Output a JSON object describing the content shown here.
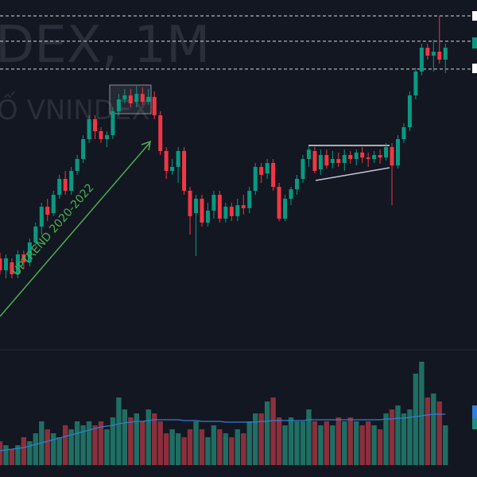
{
  "chart_data": {
    "type": "candlestick",
    "watermark": "DEX, 1M",
    "watermark_sub": "Ố VNINDEX",
    "annotation": "UPTREND 2020-2022",
    "ylim": [
      492,
      1900
    ],
    "vlim": [
      0,
      145
    ],
    "up_color": "#089981",
    "down_color": "#f23645",
    "volume_up_color": "#1f6e63",
    "volume_down_color": "#8c2f3c",
    "ma_color": "#2f7fd8",
    "hlines": [
      1836,
      1734,
      1622
    ],
    "open": [
      860,
      812,
      844,
      796,
      876,
      844,
      924,
      988,
      1068,
      1042,
      1116,
      1180,
      1132,
      1212,
      1260,
      1340,
      1420,
      1372,
      1340,
      1356,
      1452,
      1500,
      1516,
      1490,
      1522,
      1490,
      1510,
      1436,
      1292,
      1212,
      1228,
      1292,
      1132,
      1042,
      1100,
      1004,
      1052,
      1116,
      1020,
      1068,
      1030,
      1074,
      1062,
      1132,
      1228,
      1202,
      1244,
      1148,
      1020,
      1100,
      1138,
      1180,
      1260,
      1292,
      1218,
      1276,
      1244,
      1260,
      1244,
      1276,
      1260,
      1286,
      1266,
      1260,
      1276,
      1266,
      1308,
      1234,
      1340,
      1388,
      1516,
      1612,
      1708,
      1676,
      1692,
      1660
    ],
    "high": [
      882,
      876,
      860,
      892,
      892,
      940,
      1004,
      1084,
      1100,
      1132,
      1196,
      1212,
      1228,
      1276,
      1356,
      1436,
      1436,
      1388,
      1372,
      1468,
      1522,
      1542,
      1542,
      1554,
      1548,
      1542,
      1532,
      1452,
      1308,
      1260,
      1308,
      1308,
      1148,
      1116,
      1116,
      1084,
      1132,
      1132,
      1084,
      1084,
      1100,
      1116,
      1148,
      1244,
      1244,
      1260,
      1260,
      1164,
      1116,
      1148,
      1196,
      1276,
      1314,
      1308,
      1298,
      1298,
      1292,
      1286,
      1298,
      1292,
      1298,
      1308,
      1286,
      1292,
      1298,
      1324,
      1324,
      1356,
      1404,
      1532,
      1628,
      1724,
      1724,
      1740,
      1836,
      1724
    ],
    "low": [
      796,
      780,
      780,
      780,
      818,
      828,
      908,
      956,
      1010,
      1030,
      1100,
      1116,
      1116,
      1196,
      1244,
      1324,
      1340,
      1324,
      1308,
      1340,
      1436,
      1484,
      1468,
      1468,
      1478,
      1478,
      1420,
      1276,
      1180,
      1196,
      1164,
      1116,
      956,
      870,
      988,
      988,
      1020,
      1004,
      1004,
      1010,
      1010,
      1036,
      1042,
      1116,
      1164,
      1180,
      1132,
      1010,
      1010,
      1074,
      1116,
      1164,
      1228,
      1202,
      1196,
      1222,
      1222,
      1228,
      1212,
      1241,
      1234,
      1244,
      1228,
      1244,
      1241,
      1254,
      1074,
      1222,
      1324,
      1372,
      1500,
      1596,
      1660,
      1612,
      1644,
      1606
    ],
    "close": [
      812,
      860,
      796,
      876,
      844,
      924,
      988,
      1068,
      1036,
      1116,
      1180,
      1132,
      1212,
      1260,
      1340,
      1420,
      1372,
      1340,
      1356,
      1452,
      1500,
      1516,
      1484,
      1522,
      1490,
      1510,
      1436,
      1292,
      1212,
      1228,
      1292,
      1132,
      1030,
      1100,
      1004,
      1052,
      1116,
      1020,
      1068,
      1030,
      1074,
      1062,
      1132,
      1228,
      1196,
      1244,
      1148,
      1020,
      1100,
      1138,
      1180,
      1260,
      1298,
      1212,
      1276,
      1234,
      1260,
      1244,
      1276,
      1260,
      1286,
      1266,
      1260,
      1276,
      1266,
      1308,
      1234,
      1340,
      1388,
      1516,
      1612,
      1708,
      1676,
      1692,
      1660,
      1708
    ],
    "volume": [
      30,
      25,
      20,
      25,
      35,
      30,
      40,
      55,
      45,
      40,
      35,
      50,
      45,
      55,
      50,
      55,
      50,
      55,
      45,
      60,
      85,
      70,
      60,
      65,
      55,
      70,
      65,
      55,
      40,
      45,
      40,
      35,
      45,
      55,
      45,
      35,
      50,
      45,
      40,
      35,
      45,
      40,
      55,
      65,
      65,
      80,
      85,
      60,
      50,
      60,
      55,
      55,
      70,
      55,
      50,
      55,
      50,
      60,
      55,
      60,
      55,
      50,
      55,
      50,
      45,
      65,
      70,
      75,
      65,
      70,
      115,
      130,
      85,
      90,
      80,
      50
    ],
    "volume_ma": [
      18,
      19,
      20,
      21,
      22,
      24,
      26,
      28,
      30,
      32,
      34,
      36,
      38,
      40,
      42,
      44,
      46,
      48,
      49,
      50,
      52,
      53,
      54,
      55,
      55,
      56,
      57,
      57,
      57,
      57,
      57,
      56,
      56,
      56,
      55,
      55,
      55,
      55,
      54,
      54,
      54,
      54,
      54,
      54,
      55,
      55,
      56,
      56,
      56,
      56,
      56,
      56,
      57,
      57,
      57,
      57,
      57,
      57,
      57,
      57,
      57,
      57,
      57,
      57,
      57,
      58,
      58,
      59,
      59,
      60,
      61,
      62,
      63,
      64,
      64,
      64
    ]
  }
}
